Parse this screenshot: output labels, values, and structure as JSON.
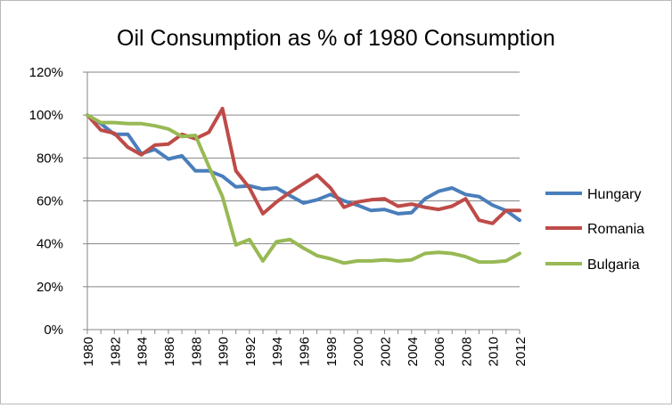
{
  "chart_data": {
    "type": "line",
    "title": "Oil Consumption as % of 1980 Consumption",
    "xlabel": "",
    "ylabel": "",
    "ylim": [
      0,
      120
    ],
    "y_ticks": [
      0,
      20,
      40,
      60,
      80,
      100,
      120
    ],
    "y_tick_labels": [
      "0%",
      "20%",
      "40%",
      "60%",
      "80%",
      "100%",
      "120%"
    ],
    "x_tick_labels": [
      "1980",
      "1982",
      "1984",
      "1986",
      "1988",
      "1990",
      "1992",
      "1994",
      "1996",
      "1998",
      "2000",
      "2002",
      "2004",
      "2006",
      "2008",
      "2010",
      "2012"
    ],
    "grid": true,
    "legend_position": "right",
    "x": [
      1980,
      1981,
      1982,
      1983,
      1984,
      1985,
      1986,
      1987,
      1988,
      1989,
      1990,
      1991,
      1992,
      1993,
      1994,
      1995,
      1996,
      1997,
      1998,
      1999,
      2000,
      2001,
      2002,
      2003,
      2004,
      2005,
      2006,
      2007,
      2008,
      2009,
      2010,
      2011,
      2012
    ],
    "series": [
      {
        "name": "Hungary",
        "color": "#4a7ebb",
        "values": [
          100,
          96,
          91,
          91,
          82,
          84,
          79.5,
          81,
          74,
          74,
          71.5,
          66.5,
          67,
          65.5,
          66,
          62.5,
          59,
          60.5,
          63,
          60,
          58,
          55.5,
          56,
          54,
          54.5,
          61,
          64.5,
          66,
          63,
          62,
          58,
          55.5,
          51
        ]
      },
      {
        "name": "Romania",
        "color": "#be4b48",
        "values": [
          100,
          93,
          91.5,
          85,
          81.5,
          86,
          86.5,
          91,
          89,
          92,
          103,
          74,
          66,
          54,
          59.5,
          64,
          68,
          72,
          66,
          57,
          59.5,
          60.5,
          61,
          57.5,
          58.5,
          57,
          56,
          57.5,
          61,
          51,
          49.5,
          55.5,
          55.5
        ]
      },
      {
        "name": "Bulgaria",
        "color": "#98b954",
        "values": [
          100,
          96.5,
          96.5,
          96,
          96,
          95,
          93.5,
          90,
          90.5,
          76,
          62,
          39.5,
          42,
          32,
          41,
          42,
          38,
          34.5,
          33,
          31,
          32,
          32,
          32.5,
          32,
          32.5,
          35.5,
          36,
          35.5,
          34,
          31.5,
          31.5,
          32,
          35.5
        ]
      }
    ]
  }
}
